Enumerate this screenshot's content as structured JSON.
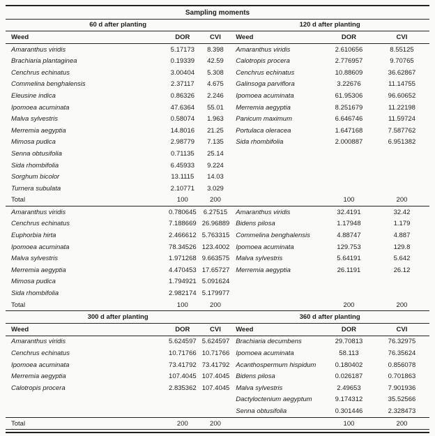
{
  "table": {
    "title": "Sampling moments",
    "total_label": "Total",
    "sections": [
      {
        "left_heading": "60 d after planting",
        "right_heading": "120 d after planting",
        "columns": [
          "Weed",
          "DOR",
          "CVI"
        ],
        "blocks": [
          {
            "left_rows": [
              {
                "name": "Amaranthus viridis",
                "dor": "5.17173",
                "cvi": "8.398"
              },
              {
                "name": "Brachiaria plantaginea",
                "dor": "0.19339",
                "cvi": "42.59"
              },
              {
                "name": "Cenchrus echinatus",
                "dor": "3.00404",
                "cvi": "5.308"
              },
              {
                "name": "Commelina benghalensis",
                "dor": "2.37117",
                "cvi": "4.675"
              },
              {
                "name": "Eleusine indica",
                "dor": "0.86326",
                "cvi": "2.246"
              },
              {
                "name": "Ipomoea acuminata",
                "dor": "47.6364",
                "cvi": "55.01"
              },
              {
                "name": "Malva sylvestris",
                "dor": "0.58074",
                "cvi": "1.963"
              },
              {
                "name": "Merremia aegyptia",
                "dor": "14.8016",
                "cvi": "21.25"
              },
              {
                "name": "Mimosa pudica",
                "dor": "2.98779",
                "cvi": "7.135"
              },
              {
                "name": "Senna obtusifolia",
                "dor": "0.71135",
                "cvi": "25.14"
              },
              {
                "name": "Sida rhombifolia",
                "dor": "6.45933",
                "cvi": "9.224"
              },
              {
                "name": "Sorghum bicolor",
                "dor": "13.1115",
                "cvi": "14.03"
              },
              {
                "name": "Turnera subulata",
                "dor": "2.10771",
                "cvi": "3.029"
              }
            ],
            "right_rows": [
              {
                "name": "Amaranthus viridis",
                "dor": "2.610656",
                "cvi": "8.55125"
              },
              {
                "name": "Calotropis procera",
                "dor": "2.776957",
                "cvi": "9.70765"
              },
              {
                "name": "Cenchrus echinatus",
                "dor": "10.88609",
                "cvi": "36.62867"
              },
              {
                "name": "Galinsoga parviflora",
                "dor": "3.22676",
                "cvi": "11.14755"
              },
              {
                "name": "Ipomoea acuminata",
                "dor": "61.95306",
                "cvi": "96.60652"
              },
              {
                "name": "Merremia aegyptia",
                "dor": "8.251679",
                "cvi": "11.22198"
              },
              {
                "name": "Panicum maximum",
                "dor": "6.646746",
                "cvi": "11.59724"
              },
              {
                "name": "Portulaca oleracea",
                "dor": "1.647168",
                "cvi": "7.587762"
              },
              {
                "name": "Sida rhombifolia",
                "dor": "2.000887",
                "cvi": "6.951382"
              }
            ],
            "totals": {
              "left": [
                "100",
                "200"
              ],
              "right": [
                "100",
                "200"
              ]
            }
          },
          {
            "left_rows": [
              {
                "name": "Amaranthus viridis",
                "dor": "0.780645",
                "cvi": "6.27515"
              },
              {
                "name": "Cenchrus echinatus",
                "dor": "7.188669",
                "cvi": "26.96889"
              },
              {
                "name": "Euphorbia hirta",
                "dor": "2.466612",
                "cvi": "5.763315"
              },
              {
                "name": "Ipomoea acuminata",
                "dor": "78.34526",
                "cvi": "123.4002"
              },
              {
                "name": "Malva sylvestris",
                "dor": "1.971268",
                "cvi": "9.663575"
              },
              {
                "name": "Merremia aegyptia",
                "dor": "4.470453",
                "cvi": "17.65727"
              },
              {
                "name": "Mimosa pudica",
                "dor": "1.794921",
                "cvi": "5.091624"
              },
              {
                "name": "Sida rhombifolia",
                "dor": "2.982174",
                "cvi": "5.179977"
              }
            ],
            "right_rows": [
              {
                "name": "Amaranthus viridis",
                "dor": "32.4191",
                "cvi": "32.42"
              },
              {
                "name": "Bidens pilosa",
                "dor": "1.17948",
                "cvi": "1.179"
              },
              {
                "name": "Commelina benghalensis",
                "dor": "4.88747",
                "cvi": "4.887"
              },
              {
                "name": "Ipomoea acuminata",
                "dor": "129.753",
                "cvi": "129.8"
              },
              {
                "name": "Malva sylvestris",
                "dor": "5.64191",
                "cvi": "5.642"
              },
              {
                "name": "Merremia aegyptia",
                "dor": "26.1191",
                "cvi": "26.12"
              }
            ],
            "totals": {
              "left": [
                "100",
                "200"
              ],
              "right": [
                "200",
                "200"
              ]
            }
          }
        ]
      },
      {
        "left_heading": "300 d after planting",
        "right_heading": "360 d after planting",
        "columns": [
          "Weed",
          "DOR",
          "CVI"
        ],
        "blocks": [
          {
            "left_rows": [
              {
                "name": "Amaranthus viridis",
                "dor": "5.624597",
                "cvi": "5.624597"
              },
              {
                "name": "Cenchrus echinatus",
                "dor": "10.71766",
                "cvi": "10.71766"
              },
              {
                "name": "Ipomoea acuminata",
                "dor": "73.41792",
                "cvi": "73.41792"
              },
              {
                "name": "Merremia aegyptia",
                "dor": "107.4045",
                "cvi": "107.4045"
              },
              {
                "name": "Calotropis procera",
                "dor": "2.835362",
                "cvi": "107.4045"
              }
            ],
            "right_rows": [
              {
                "name": "Brachiaria decumbens",
                "dor": "29.70813",
                "cvi": "76.32975"
              },
              {
                "name": "Ipomoea acuminata",
                "dor": "58.113",
                "cvi": "76.35624"
              },
              {
                "name": "Acanthospermum hispidum",
                "dor": "0.180402",
                "cvi": "0.856078"
              },
              {
                "name": "Bidens pilosa",
                "dor": "0.026187",
                "cvi": "0.701863"
              },
              {
                "name": "Malva sylvestris",
                "dor": "2.49653",
                "cvi": "7.901936"
              },
              {
                "name": "Dactyloctenium aegyptum",
                "dor": "9.174312",
                "cvi": "35.52566"
              },
              {
                "name": "Senna obtusifolia",
                "dor": "0.301446",
                "cvi": "2.328473"
              }
            ],
            "totals": {
              "left": [
                "200",
                "200"
              ],
              "right": [
                "100",
                "200"
              ]
            }
          }
        ]
      }
    ]
  }
}
